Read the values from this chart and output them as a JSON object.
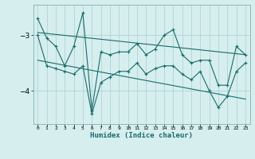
{
  "xlabel": "Humidex (Indice chaleur)",
  "ylabel": "",
  "background_color": "#d6eeee",
  "line_color": "#1a6b6b",
  "grid_color": "#b0d4d4",
  "xlim": [
    -0.5,
    23.5
  ],
  "ylim": [
    -4.6,
    -2.45
  ],
  "yticks": [
    -4,
    -3
  ],
  "xticks": [
    0,
    1,
    2,
    3,
    4,
    5,
    6,
    7,
    8,
    9,
    10,
    11,
    12,
    13,
    14,
    15,
    16,
    17,
    18,
    19,
    20,
    21,
    22,
    23
  ],
  "series1_x": [
    0,
    1,
    2,
    3,
    4,
    5,
    6,
    7,
    8,
    9,
    10,
    11,
    12,
    13,
    14,
    15,
    16,
    17,
    18,
    19,
    20,
    21,
    22,
    23
  ],
  "series1_y": [
    -2.7,
    -3.05,
    -3.2,
    -3.55,
    -3.2,
    -2.6,
    -4.35,
    -3.3,
    -3.35,
    -3.3,
    -3.3,
    -3.15,
    -3.35,
    -3.25,
    -3.0,
    -2.9,
    -3.35,
    -3.5,
    -3.45,
    -3.45,
    -3.9,
    -3.9,
    -3.2,
    -3.35
  ],
  "series2_x": [
    0,
    1,
    2,
    3,
    4,
    5,
    6,
    7,
    8,
    9,
    10,
    11,
    12,
    13,
    14,
    15,
    16,
    17,
    18,
    19,
    20,
    21,
    22,
    23
  ],
  "series2_y": [
    -3.0,
    -3.55,
    -3.6,
    -3.65,
    -3.7,
    -3.55,
    -4.42,
    -3.85,
    -3.75,
    -3.65,
    -3.65,
    -3.5,
    -3.7,
    -3.6,
    -3.55,
    -3.55,
    -3.7,
    -3.8,
    -3.65,
    -4.0,
    -4.3,
    -4.1,
    -3.65,
    -3.5
  ],
  "trend1_x": [
    0,
    23
  ],
  "trend1_y": [
    -2.95,
    -3.35
  ],
  "trend2_x": [
    0,
    23
  ],
  "trend2_y": [
    -3.45,
    -4.15
  ],
  "marker_size": 2.5,
  "line_width": 0.8,
  "spine_color": "#8ababa"
}
